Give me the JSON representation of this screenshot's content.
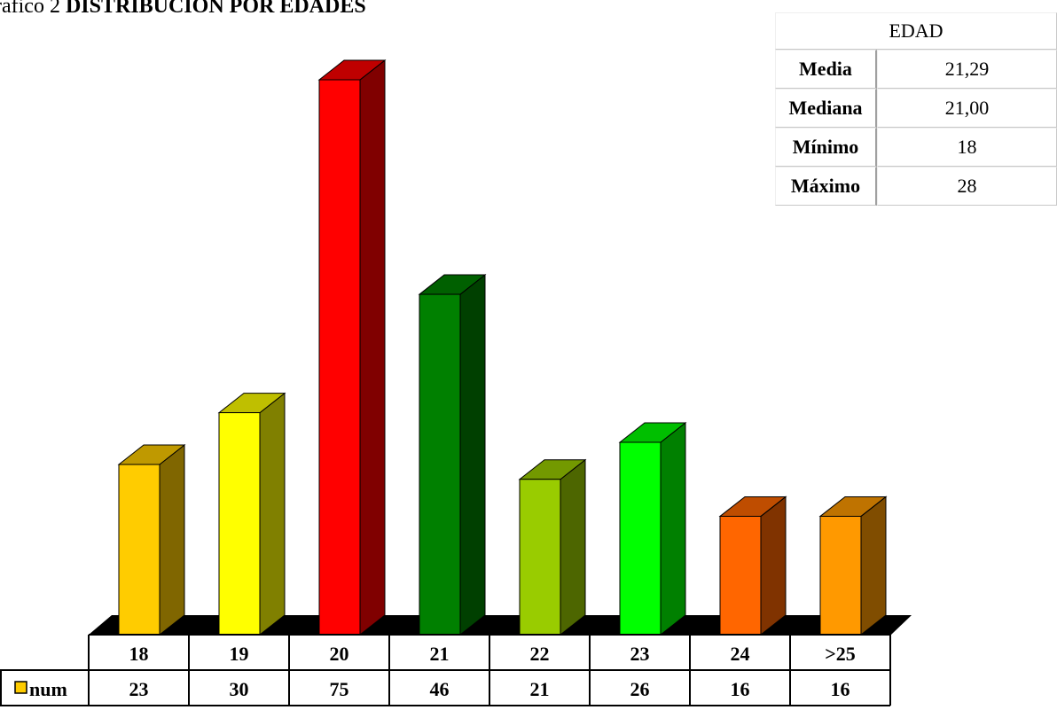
{
  "title": {
    "prefix": "rafico 2",
    "main": "DISTRIBUCION  POR  EDADES"
  },
  "stats_table": {
    "header": "EDAD",
    "rows": [
      {
        "label": "Media",
        "value": "21,29"
      },
      {
        "label": "Mediana",
        "value": "21,00"
      },
      {
        "label": "Mínimo",
        "value": "18"
      },
      {
        "label": "Máximo",
        "value": "28"
      }
    ]
  },
  "chart_data": {
    "type": "bar",
    "categories": [
      "18",
      "19",
      "20",
      "21",
      "22",
      "23",
      "24",
      ">25"
    ],
    "series": [
      {
        "name": "num",
        "values": [
          23,
          30,
          75,
          46,
          21,
          26,
          16,
          16
        ]
      }
    ],
    "ylim": [
      0,
      75
    ],
    "grid": false,
    "legend": "bottom-left",
    "colors": [
      "#ffcc00",
      "#ffff00",
      "#ff0000",
      "#008000",
      "#99cc00",
      "#00ff00",
      "#ff6600",
      "#ff9900"
    ],
    "legend_color": "#ffcc00"
  }
}
